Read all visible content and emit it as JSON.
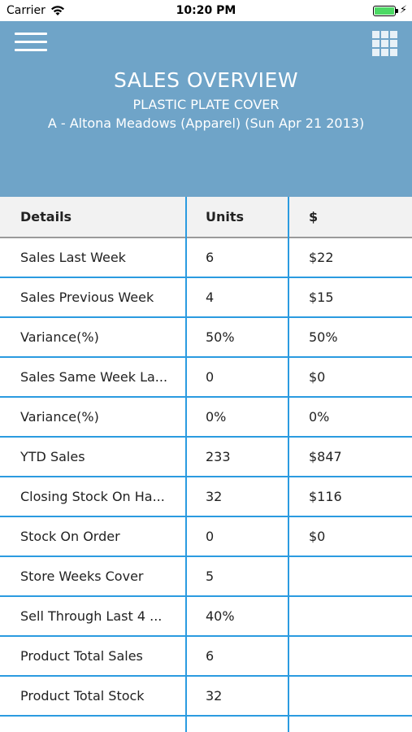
{
  "status_bar": {
    "carrier": "Carrier",
    "time": "10:20 PM",
    "battery_level": 1.0
  },
  "header": {
    "title": "SALES OVERVIEW",
    "product": "PLASTIC PLATE COVER",
    "store_line": "A - Altona Meadows (Apparel) (Sun Apr 21 2013)",
    "background_color": "#6fa4c8"
  },
  "table": {
    "columns": [
      "Details",
      "Units",
      "$"
    ],
    "rows": [
      {
        "label": "Sales Last Week",
        "units": "6",
        "amount": "$22"
      },
      {
        "label": "Sales Previous Week",
        "units": "4",
        "amount": "$15"
      },
      {
        "label": "Variance(%)",
        "units": "50%",
        "amount": "50%"
      },
      {
        "label": "Sales Same Week La...",
        "units": "0",
        "amount": "$0"
      },
      {
        "label": "Variance(%)",
        "units": "0%",
        "amount": "0%"
      },
      {
        "label": "YTD Sales",
        "units": "233",
        "amount": "$847"
      },
      {
        "label": "Closing Stock On Ha...",
        "units": "32",
        "amount": "$116"
      },
      {
        "label": "Stock On Order",
        "units": "0",
        "amount": "$0"
      },
      {
        "label": "Store Weeks Cover",
        "units": "5",
        "amount": ""
      },
      {
        "label": "Sell Through Last 4 ...",
        "units": "40%",
        "amount": ""
      },
      {
        "label": "Product Total Sales",
        "units": "6",
        "amount": ""
      },
      {
        "label": "Product Total Stock",
        "units": "32",
        "amount": ""
      }
    ],
    "divider_color": "#2b9be0"
  },
  "icons": {
    "menu": "hamburger-menu-icon",
    "grid": "grid-apps-icon",
    "wifi": "wifi-icon",
    "battery": "battery-icon",
    "charging": "charging-bolt-icon"
  }
}
